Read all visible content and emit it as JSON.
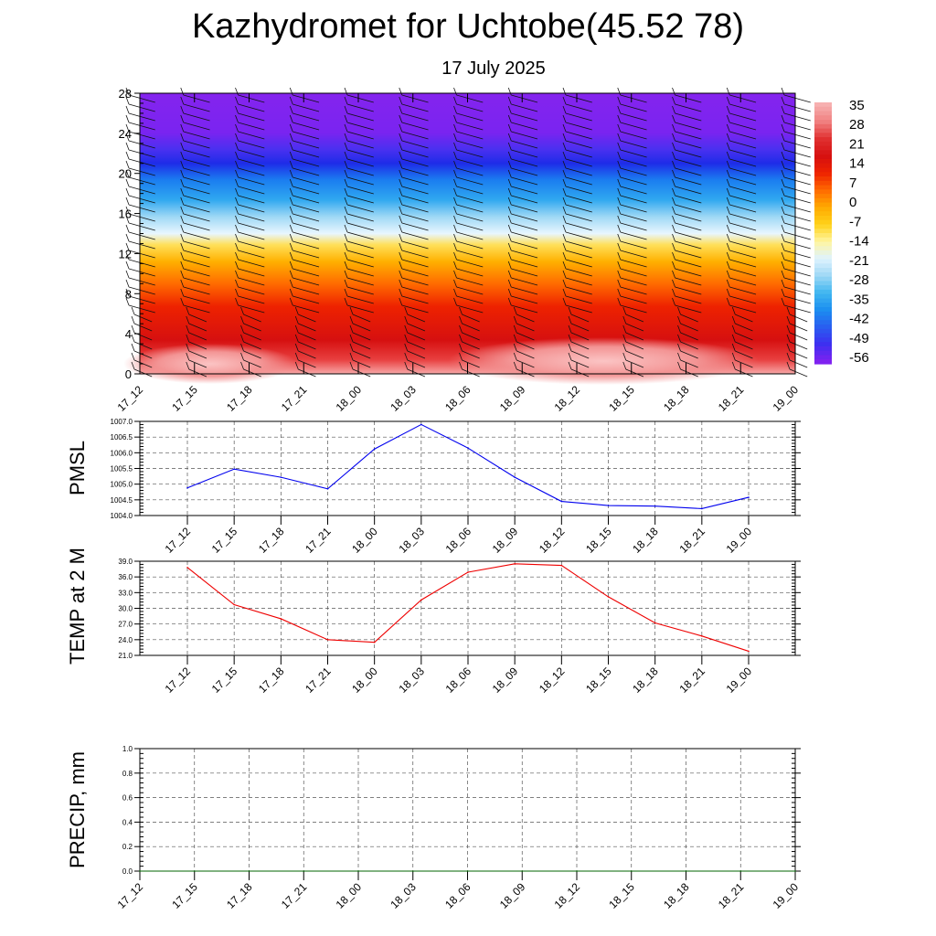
{
  "title": "Kazhydromet for Uchtobe(45.52 78)",
  "subtitle": "17 July 2025",
  "colors": {
    "pmsl_line": "#0000ee",
    "temp_line": "#ee0000",
    "precip_line": "#006400"
  },
  "chart_data": [
    {
      "id": "cross-section",
      "type": "heatmap",
      "x_categories": [
        "17_12",
        "17_15",
        "17_18",
        "17_21",
        "18_00",
        "18_03",
        "18_06",
        "18_09",
        "18_12",
        "18_15",
        "18_18",
        "18_21",
        "19_00"
      ],
      "y_ticks": [
        0,
        4,
        8,
        12,
        16,
        20,
        24,
        28
      ],
      "ylim": [
        0,
        28
      ],
      "colorbar_labels": [
        "35",
        "28",
        "21",
        "14",
        "7",
        "0",
        "-7",
        "-14",
        "-21",
        "-28",
        "-35",
        "-42",
        "-49",
        "-56"
      ],
      "colorbar_colors": [
        "#f7b0b0",
        "#f08080",
        "#e03030",
        "#d61010",
        "#ee2200",
        "#ff6a00",
        "#ffaa00",
        "#ffd21a",
        "#fff5a0",
        "#dff3ff",
        "#9ed8f5",
        "#40b6f0",
        "#1b8ef0",
        "#2a5df0",
        "#3d2ff0",
        "#7f22f0"
      ],
      "note": "temperature-shaded cross section with wind barbs"
    },
    {
      "id": "pmsl",
      "type": "line",
      "ylabel": "PMSL",
      "categories": [
        "17_12",
        "17_15",
        "17_18",
        "17_21",
        "18_00",
        "18_03",
        "18_06",
        "18_09",
        "18_12",
        "18_15",
        "18_18",
        "18_21",
        "19_00"
      ],
      "values": [
        1004.88,
        1005.48,
        1005.22,
        1004.85,
        1006.12,
        1006.9,
        1006.15,
        1005.22,
        1004.45,
        1004.32,
        1004.3,
        1004.22,
        1004.58
      ],
      "ylim": [
        1004.0,
        1007.0
      ],
      "y_ticks": [
        "1004.0",
        "1004.5",
        "1005.0",
        "1005.5",
        "1006.0",
        "1006.5",
        "1007.0"
      ],
      "grid": true
    },
    {
      "id": "temp",
      "type": "line",
      "ylabel": "TEMP at 2 M",
      "categories": [
        "17_12",
        "17_15",
        "17_18",
        "17_21",
        "18_00",
        "18_03",
        "18_06",
        "18_09",
        "18_12",
        "18_15",
        "18_18",
        "18_21",
        "19_00"
      ],
      "values": [
        37.8,
        30.7,
        28.0,
        24.0,
        23.5,
        31.6,
        36.9,
        38.5,
        38.2,
        32.2,
        27.2,
        24.7,
        21.8
      ],
      "ylim": [
        21.0,
        39.0
      ],
      "y_ticks": [
        "21.0",
        "24.0",
        "27.0",
        "30.0",
        "33.0",
        "36.0",
        "39.0"
      ],
      "grid": true
    },
    {
      "id": "precip",
      "type": "line",
      "ylabel": "PRECIP, mm",
      "categories": [
        "17_12",
        "17_15",
        "17_18",
        "17_21",
        "18_00",
        "18_03",
        "18_06",
        "18_09",
        "18_12",
        "18_15",
        "18_18",
        "18_21",
        "19_00"
      ],
      "values": [
        0,
        0,
        0,
        0,
        0,
        0,
        0,
        0,
        0,
        0,
        0,
        0,
        0
      ],
      "ylim": [
        0.0,
        1.0
      ],
      "y_ticks": [
        "0.0",
        "0.2",
        "0.4",
        "0.6",
        "0.8",
        "1.0"
      ],
      "grid": true
    }
  ]
}
